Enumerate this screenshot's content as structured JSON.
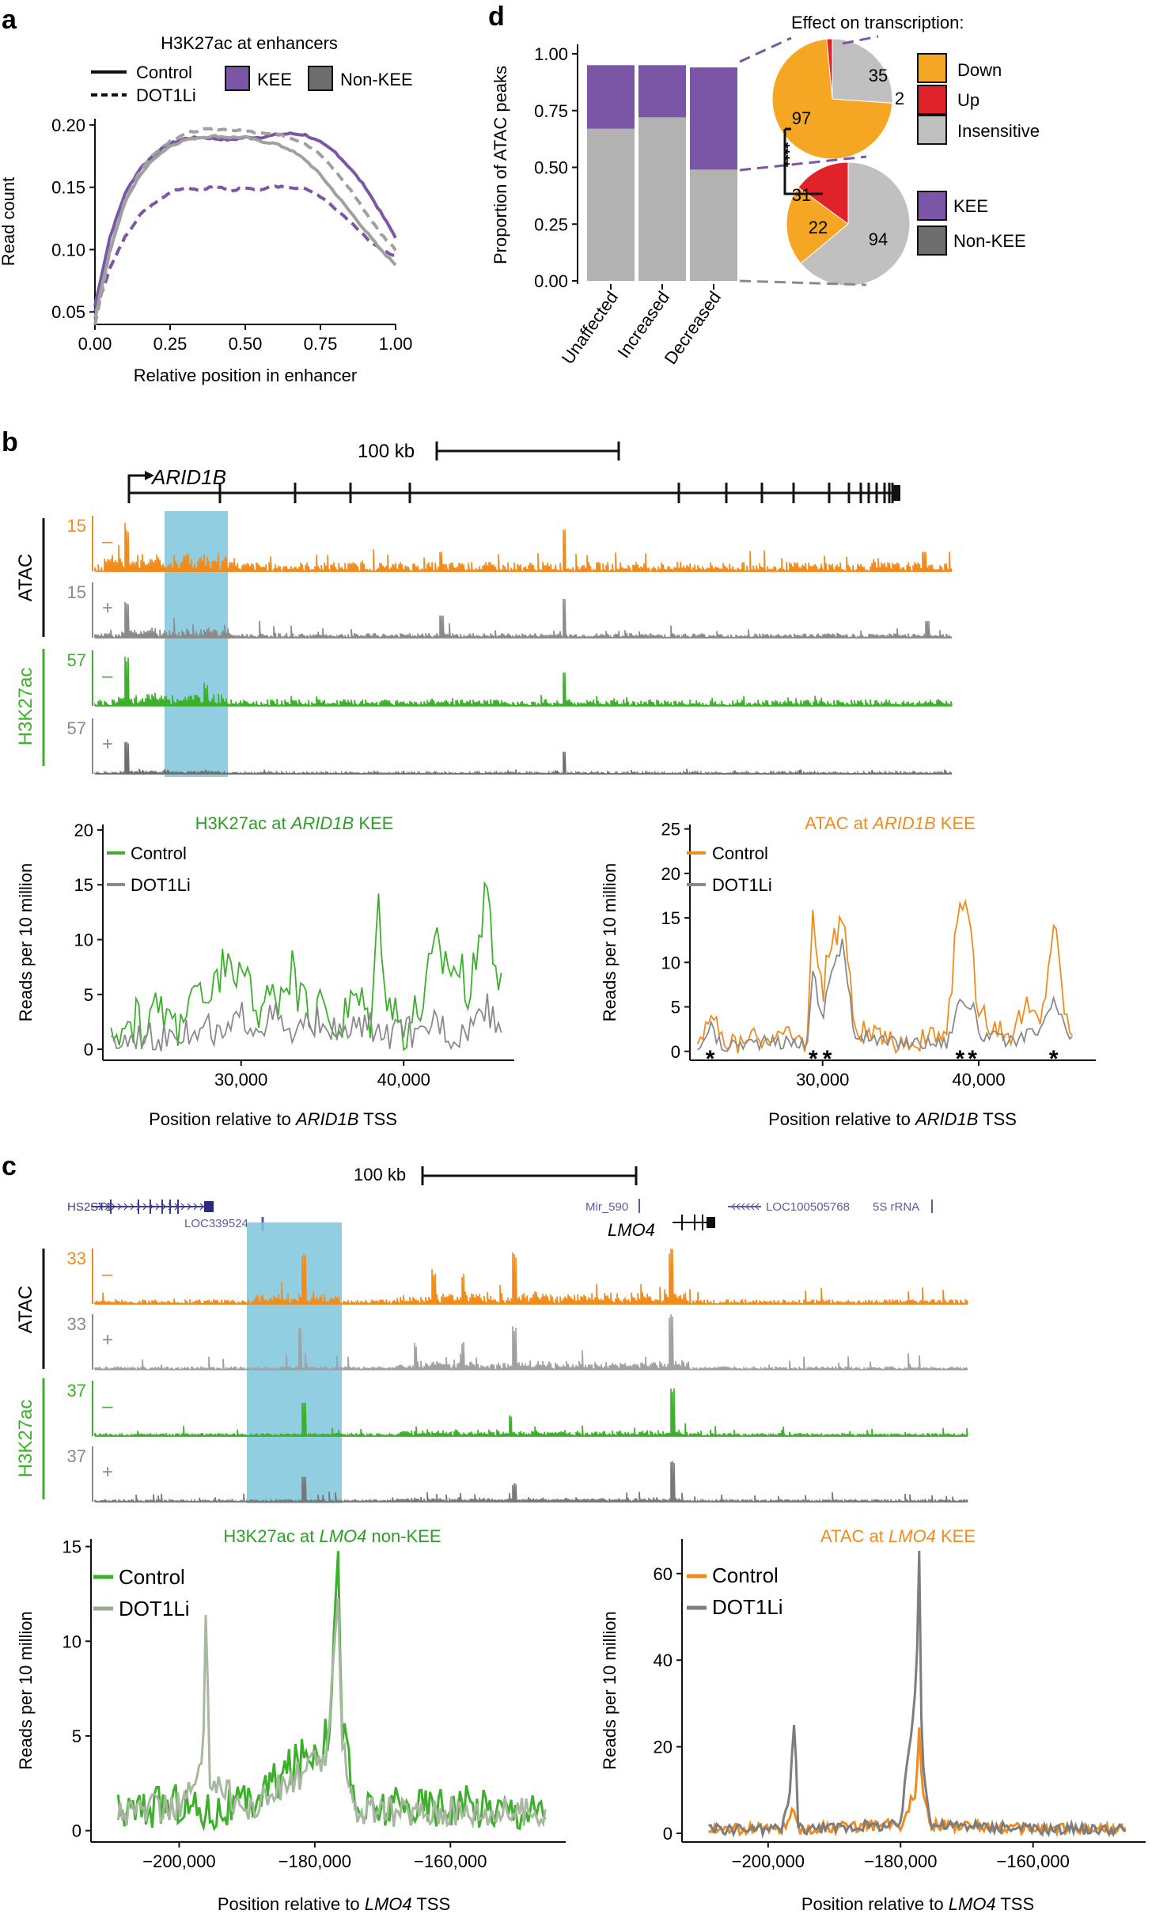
{
  "colors": {
    "kee": "#6b4fa0",
    "nonkee": "#b2b2b2",
    "down": "#f5a623",
    "up": "#e0232a",
    "insensitive": "#c0c0c0",
    "atac": "#f08c1e",
    "h3k27": "#3cb02b",
    "dot1li_track": "#8a8a8a",
    "highlight": "#7fc6dd",
    "gene": "#5c5c9f",
    "control_line": "#7b56a6",
    "dot1li_line": "#a0a0a0"
  },
  "panel_a": {
    "letter": "a",
    "title": "H3K27ac at enhancers",
    "legend_control": "Control",
    "legend_dot1li": "DOT1Li",
    "legend_kee": "KEE",
    "legend_nonkee": "Non-KEE"
  },
  "panel_d": {
    "letter": "d",
    "pie_title": "Effect on transcription:",
    "legend_down": "Down",
    "legend_up": "Up",
    "legend_insensitive": "Insensitive",
    "legend_kee": "KEE",
    "legend_nonkee": "Non-KEE",
    "significance": "****",
    "pie_top_labels": [
      "35",
      "2",
      "97"
    ],
    "pie_bottom_labels": [
      "31",
      "22",
      "94"
    ]
  },
  "panel_b": {
    "letter": "b",
    "scale_label": "100 kb",
    "gene": "ARID1B",
    "group_atac": "ATAC",
    "group_h3k27": "H3K27ac",
    "tracks": [
      {
        "scale": "15",
        "sign": "–"
      },
      {
        "scale": "15",
        "sign": "+"
      },
      {
        "scale": "57",
        "sign": "–"
      },
      {
        "scale": "57",
        "sign": "+"
      }
    ],
    "left_title_a": "H3K27ac at ",
    "left_title_gene": "ARID1B",
    "left_title_b": " KEE",
    "right_title_a": "ATAC at ",
    "right_title_gene": "ARID1B",
    "right_title_b": " KEE",
    "xlabel_a": "Position relative to ",
    "xlabel_gene": "ARID1B",
    "xlabel_b": " TSS",
    "legend_control": "Control",
    "legend_dot1li": "DOT1Li",
    "asterisks": [
      "*",
      "*",
      "*",
      "*",
      "*",
      "*"
    ]
  },
  "panel_c": {
    "letter": "c",
    "scale_label": "100 kb",
    "gene": "LMO4",
    "gene_labels": [
      "HS2ST1",
      "LOC339524",
      "Mir_590",
      "LOC100505768",
      "5S rRNA"
    ],
    "group_atac": "ATAC",
    "group_h3k27": "H3K27ac",
    "tracks": [
      {
        "scale": "33",
        "sign": "–"
      },
      {
        "scale": "33",
        "sign": "+"
      },
      {
        "scale": "37",
        "sign": "–"
      },
      {
        "scale": "37",
        "sign": "+"
      }
    ],
    "left_title_a": "H3K27ac at ",
    "left_title_gene": "LMO4",
    "left_title_b": " non-KEE",
    "right_title_a": "ATAC at ",
    "right_title_gene": "LMO4",
    "right_title_b": " KEE",
    "xlabel_a": "Position relative to ",
    "xlabel_gene": "LMO4",
    "xlabel_b": " TSS",
    "legend_control": "Control",
    "legend_dot1li": "DOT1Li"
  },
  "chart_data": [
    {
      "id": "a",
      "type": "line",
      "title": "H3K27ac at enhancers",
      "xlabel": "Relative position in enhancer",
      "ylabel": "Read count",
      "xlim": [
        0,
        1
      ],
      "ylim": [
        0.04,
        0.205
      ],
      "xticks": [
        0,
        0.25,
        0.5,
        0.75,
        1
      ],
      "xtick_labels": [
        "0.00",
        "0.25",
        "0.50",
        "0.75",
        "1.00"
      ],
      "yticks": [
        0.05,
        0.1,
        0.15,
        0.2
      ],
      "ytick_labels": [
        "0.05",
        "0.10",
        "0.15",
        "0.20"
      ],
      "series": [
        {
          "name": "KEE Control",
          "style": "solid",
          "color": "#7b56a6",
          "x": [
            0,
            0.05,
            0.1,
            0.15,
            0.2,
            0.25,
            0.3,
            0.35,
            0.4,
            0.45,
            0.5,
            0.55,
            0.6,
            0.65,
            0.7,
            0.75,
            0.8,
            0.85,
            0.9,
            0.95,
            1
          ],
          "y": [
            0.055,
            0.11,
            0.145,
            0.165,
            0.177,
            0.185,
            0.189,
            0.19,
            0.189,
            0.188,
            0.19,
            0.19,
            0.192,
            0.193,
            0.192,
            0.186,
            0.178,
            0.165,
            0.15,
            0.13,
            0.11
          ]
        },
        {
          "name": "KEE DOT1Li",
          "style": "dashed",
          "color": "#7b56a6",
          "x": [
            0,
            0.05,
            0.1,
            0.15,
            0.2,
            0.25,
            0.3,
            0.35,
            0.4,
            0.45,
            0.5,
            0.55,
            0.6,
            0.65,
            0.7,
            0.75,
            0.8,
            0.85,
            0.9,
            0.95,
            1
          ],
          "y": [
            0.05,
            0.085,
            0.11,
            0.128,
            0.138,
            0.146,
            0.15,
            0.148,
            0.151,
            0.147,
            0.15,
            0.148,
            0.151,
            0.149,
            0.149,
            0.142,
            0.133,
            0.122,
            0.11,
            0.1,
            0.095
          ]
        },
        {
          "name": "Non-KEE Control",
          "style": "solid",
          "color": "#a0a0a0",
          "x": [
            0,
            0.05,
            0.1,
            0.15,
            0.2,
            0.25,
            0.3,
            0.35,
            0.4,
            0.45,
            0.5,
            0.55,
            0.6,
            0.65,
            0.7,
            0.75,
            0.8,
            0.85,
            0.9,
            0.95,
            1
          ],
          "y": [
            0.045,
            0.1,
            0.138,
            0.16,
            0.174,
            0.183,
            0.188,
            0.19,
            0.191,
            0.19,
            0.19,
            0.187,
            0.185,
            0.18,
            0.172,
            0.16,
            0.145,
            0.13,
            0.115,
            0.1,
            0.088
          ]
        },
        {
          "name": "Non-KEE DOT1Li",
          "style": "dashed",
          "color": "#a0a0a0",
          "x": [
            0,
            0.05,
            0.1,
            0.15,
            0.2,
            0.25,
            0.3,
            0.35,
            0.4,
            0.45,
            0.5,
            0.55,
            0.6,
            0.65,
            0.7,
            0.75,
            0.8,
            0.85,
            0.9,
            0.95,
            1
          ],
          "y": [
            0.04,
            0.098,
            0.14,
            0.163,
            0.178,
            0.187,
            0.193,
            0.196,
            0.197,
            0.196,
            0.195,
            0.194,
            0.193,
            0.19,
            0.185,
            0.176,
            0.163,
            0.148,
            0.13,
            0.113,
            0.1
          ]
        }
      ]
    },
    {
      "id": "d_bar",
      "type": "bar",
      "stacked": true,
      "ylabel": "Proportion of ATAC peaks",
      "categories": [
        "Unaffected",
        "Increased",
        "Decreased"
      ],
      "ylim": [
        0,
        1
      ],
      "yticks": [
        0,
        0.25,
        0.5,
        0.75,
        1
      ],
      "ytick_labels": [
        "0.00",
        "0.25",
        "0.50",
        "0.75",
        "1.00"
      ],
      "series": [
        {
          "name": "Non-KEE",
          "values": [
            0.67,
            0.72,
            0.49
          ]
        },
        {
          "name": "KEE",
          "values": [
            0.28,
            0.23,
            0.45
          ]
        }
      ]
    },
    {
      "id": "d_pie_kee",
      "type": "pie",
      "group": "KEE (Decreased)",
      "labels": [
        "Down",
        "Up",
        "Insensitive"
      ],
      "values": [
        97,
        2,
        35
      ]
    },
    {
      "id": "d_pie_nonkee",
      "type": "pie",
      "group": "Non-KEE (Decreased)",
      "labels": [
        "Down",
        "Up",
        "Insensitive"
      ],
      "values": [
        31,
        22,
        94
      ]
    },
    {
      "id": "b_left",
      "type": "line",
      "title": "H3K27ac at ARID1B KEE",
      "xlabel": "Position relative to ARID1B TSS",
      "ylabel": "Reads per 10 million",
      "xlim": [
        21500,
        46800
      ],
      "ylim": [
        -1,
        20.5
      ],
      "xticks": [
        30000,
        40000
      ],
      "xtick_labels": [
        "30,000",
        "40,000"
      ],
      "yticks": [
        0,
        5,
        10,
        15,
        20
      ],
      "ytick_labels": [
        "0",
        "5",
        "10",
        "15",
        "20"
      ],
      "series": [
        {
          "name": "Control",
          "color": "#3cb02b",
          "x": [
            22000,
            23000,
            24000,
            25000,
            26000,
            27000,
            28000,
            29000,
            30000,
            31000,
            32000,
            33000,
            34000,
            35000,
            36000,
            37000,
            38000,
            38500,
            39000,
            40000,
            41000,
            42000,
            43000,
            44000,
            44600,
            45000,
            45500,
            46000
          ],
          "y": [
            1,
            3,
            2,
            4,
            2,
            6,
            3,
            9,
            6,
            4,
            5,
            7,
            3,
            4,
            2,
            5,
            3,
            14,
            5,
            2,
            4,
            9,
            8,
            6,
            7,
            16,
            10,
            5
          ]
        },
        {
          "name": "DOT1Li",
          "color": "#8a8a8a",
          "x": [
            22000,
            23000,
            24000,
            25000,
            26000,
            27000,
            28000,
            29000,
            30000,
            31000,
            32000,
            33000,
            34000,
            35000,
            36000,
            37000,
            38000,
            39000,
            40000,
            41000,
            42000,
            43000,
            44000,
            45000,
            46000
          ],
          "y": [
            0.5,
            1,
            1.5,
            1,
            2,
            1,
            2,
            1,
            3,
            2,
            3,
            1,
            2,
            3,
            1,
            2,
            2,
            1,
            2,
            1,
            3,
            1,
            2,
            4,
            2
          ]
        }
      ]
    },
    {
      "id": "b_right",
      "type": "line",
      "title": "ATAC at ARID1B KEE",
      "xlabel": "Position relative to ARID1B TSS",
      "ylabel": "Reads per 10 million",
      "xlim": [
        21500,
        47500
      ],
      "ylim": [
        -1,
        25.5
      ],
      "xticks": [
        30000,
        40000
      ],
      "xtick_labels": [
        "30,000",
        "40,000"
      ],
      "yticks": [
        0,
        5,
        10,
        15,
        20,
        25
      ],
      "ytick_labels": [
        "0",
        "5",
        "10",
        "15",
        "20",
        "25"
      ],
      "asterisk_x": [
        22800,
        29400,
        30300,
        38800,
        39600,
        44800
      ],
      "series": [
        {
          "name": "Control",
          "color": "#f08c1e",
          "x": [
            22000,
            22800,
            23500,
            25000,
            27000,
            29000,
            29400,
            30000,
            30300,
            31300,
            32000,
            34000,
            36000,
            38000,
            38800,
            39600,
            40000,
            42000,
            43000,
            44000,
            44800,
            45400,
            46000
          ],
          "y": [
            1,
            5,
            1,
            1,
            2,
            1,
            16,
            5,
            11,
            16,
            3,
            1,
            1,
            2,
            19,
            11,
            4,
            2,
            5,
            3,
            15,
            6,
            1
          ]
        },
        {
          "name": "DOT1Li",
          "color": "#8a8a8a",
          "x": [
            22000,
            22800,
            23500,
            25000,
            27000,
            29000,
            29400,
            30000,
            30300,
            31300,
            32000,
            34000,
            36000,
            38000,
            38800,
            39600,
            40000,
            42000,
            43000,
            44000,
            44800,
            45400,
            46000
          ],
          "y": [
            0.5,
            3,
            0.5,
            1,
            1,
            1,
            9,
            3,
            8,
            12,
            2,
            1,
            1,
            1,
            6,
            5,
            2,
            1,
            2,
            2,
            6,
            3,
            1
          ]
        }
      ]
    },
    {
      "id": "c_left",
      "type": "line",
      "title": "H3K27ac at LMO4 non-KEE",
      "xlabel": "Position relative to LMO4 TSS",
      "ylabel": "Reads per 10 million",
      "xlim": [
        -213000,
        -143000
      ],
      "ylim": [
        -0.6,
        15.4
      ],
      "xticks": [
        -200000,
        -180000,
        -160000
      ],
      "xtick_labels": [
        "−200,000",
        "−180,000",
        "−160,000"
      ],
      "yticks": [
        0,
        5,
        10,
        15
      ],
      "ytick_labels": [
        "0",
        "5",
        "10",
        "15"
      ],
      "series": [
        {
          "name": "Control",
          "color": "#3cb02b",
          "x": [
            -209000,
            -200000,
            -196500,
            -196000,
            -195500,
            -190000,
            -178000,
            -177000,
            -176500,
            -176000,
            -174000,
            -160000,
            -146000
          ],
          "y": [
            1,
            1.5,
            1,
            1.2,
            1,
            1.3,
            5,
            12,
            14,
            6,
            1,
            1.4,
            1
          ]
        },
        {
          "name": "DOT1Li",
          "color": "#a8b8a0",
          "x": [
            -209000,
            -200000,
            -196500,
            -196000,
            -195500,
            -190000,
            -178000,
            -177000,
            -176500,
            -176000,
            -174000,
            -160000,
            -146000
          ],
          "y": [
            1,
            1.2,
            3,
            12,
            3,
            1,
            4,
            10,
            13,
            5,
            1,
            1,
            1
          ]
        }
      ]
    },
    {
      "id": "c_right",
      "type": "line",
      "title": "ATAC at LMO4 KEE",
      "xlabel": "Position relative to LMO4 TSS",
      "ylabel": "Reads per 10 million",
      "xlim": [
        -213000,
        -143000
      ],
      "ylim": [
        -2,
        68
      ],
      "xticks": [
        -200000,
        -180000,
        -160000
      ],
      "xtick_labels": [
        "−200,000",
        "−180,000",
        "−160,000"
      ],
      "yticks": [
        0,
        20,
        40,
        60
      ],
      "ytick_labels": [
        "0",
        "20",
        "40",
        "60"
      ],
      "series": [
        {
          "name": "Control",
          "color": "#f08c1e",
          "x": [
            -209000,
            -198000,
            -196800,
            -196000,
            -195500,
            -180000,
            -177600,
            -177200,
            -176800,
            -175500,
            -160000,
            -146000
          ],
          "y": [
            1,
            1,
            3,
            6,
            1,
            2,
            10,
            26,
            12,
            2,
            1,
            1
          ]
        },
        {
          "name": "DOT1Li",
          "color": "#7d7d7d",
          "x": [
            -209000,
            -198000,
            -196800,
            -196000,
            -195500,
            -180000,
            -177600,
            -177200,
            -176800,
            -175500,
            -160000,
            -146000
          ],
          "y": [
            1,
            1,
            8,
            28,
            1,
            2,
            35,
            67,
            20,
            2,
            1,
            1
          ]
        }
      ]
    }
  ]
}
